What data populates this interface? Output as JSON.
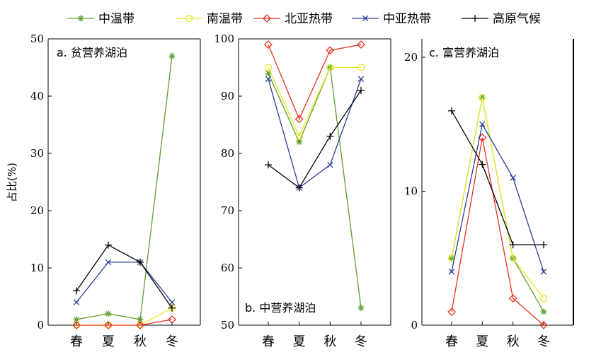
{
  "chart_data": {
    "type": "line",
    "ylabel": "占比(%)",
    "categories": [
      "春",
      "夏",
      "秋",
      "冬"
    ],
    "series_styles": [
      {
        "name": "中温带",
        "color": "#5aa02c",
        "marker": "star"
      },
      {
        "name": "南温带",
        "color": "#e8e82a",
        "marker": "circle"
      },
      {
        "name": "北亚热带",
        "color": "#e8321e",
        "marker": "diamond"
      },
      {
        "name": "中亚热带",
        "color": "#2a3c9c",
        "marker": "x"
      },
      {
        "name": "高原气候",
        "color": "#000000",
        "marker": "plus"
      }
    ],
    "panels": [
      {
        "title": "a. 贫营养湖泊",
        "ylim": [
          0,
          50
        ],
        "yticks": [
          0,
          10,
          20,
          30,
          40,
          50
        ],
        "series": [
          {
            "name": "中温带",
            "values": [
              1,
              2,
              1,
              47
            ]
          },
          {
            "name": "南温带",
            "values": [
              0,
              0,
              0,
              3
            ]
          },
          {
            "name": "北亚热带",
            "values": [
              0,
              0,
              0,
              1
            ]
          },
          {
            "name": "中亚热带",
            "values": [
              4,
              11,
              11,
              4
            ]
          },
          {
            "name": "高原气候",
            "values": [
              6,
              14,
              11,
              3
            ]
          }
        ]
      },
      {
        "title": "b. 中营养湖泊",
        "ylim": [
          50,
          100
        ],
        "yticks": [
          50,
          60,
          70,
          80,
          90,
          100
        ],
        "series": [
          {
            "name": "中温带",
            "values": [
              94,
              82,
              95,
              53
            ]
          },
          {
            "name": "南温带",
            "values": [
              95,
              83,
              95,
              95
            ]
          },
          {
            "name": "北亚热带",
            "values": [
              99,
              86,
              98,
              99
            ]
          },
          {
            "name": "中亚热带",
            "values": [
              93,
              74,
              78,
              93
            ]
          },
          {
            "name": "高原气候",
            "values": [
              78,
              74,
              83,
              91
            ]
          }
        ]
      },
      {
        "title": "c. 富营养湖泊",
        "ylim": [
          0,
          20
        ],
        "yticks": [
          0,
          10,
          20
        ],
        "series": [
          {
            "name": "中温带",
            "values": [
              5,
              17,
              5,
              1
            ]
          },
          {
            "name": "南温带",
            "values": [
              5,
              17,
              5,
              2
            ]
          },
          {
            "name": "北亚热带",
            "values": [
              1,
              14,
              2,
              0
            ]
          },
          {
            "name": "中亚热带",
            "values": [
              4,
              15,
              11,
              4
            ]
          },
          {
            "name": "高原气候",
            "values": [
              16,
              12,
              6,
              6
            ]
          }
        ]
      }
    ]
  }
}
